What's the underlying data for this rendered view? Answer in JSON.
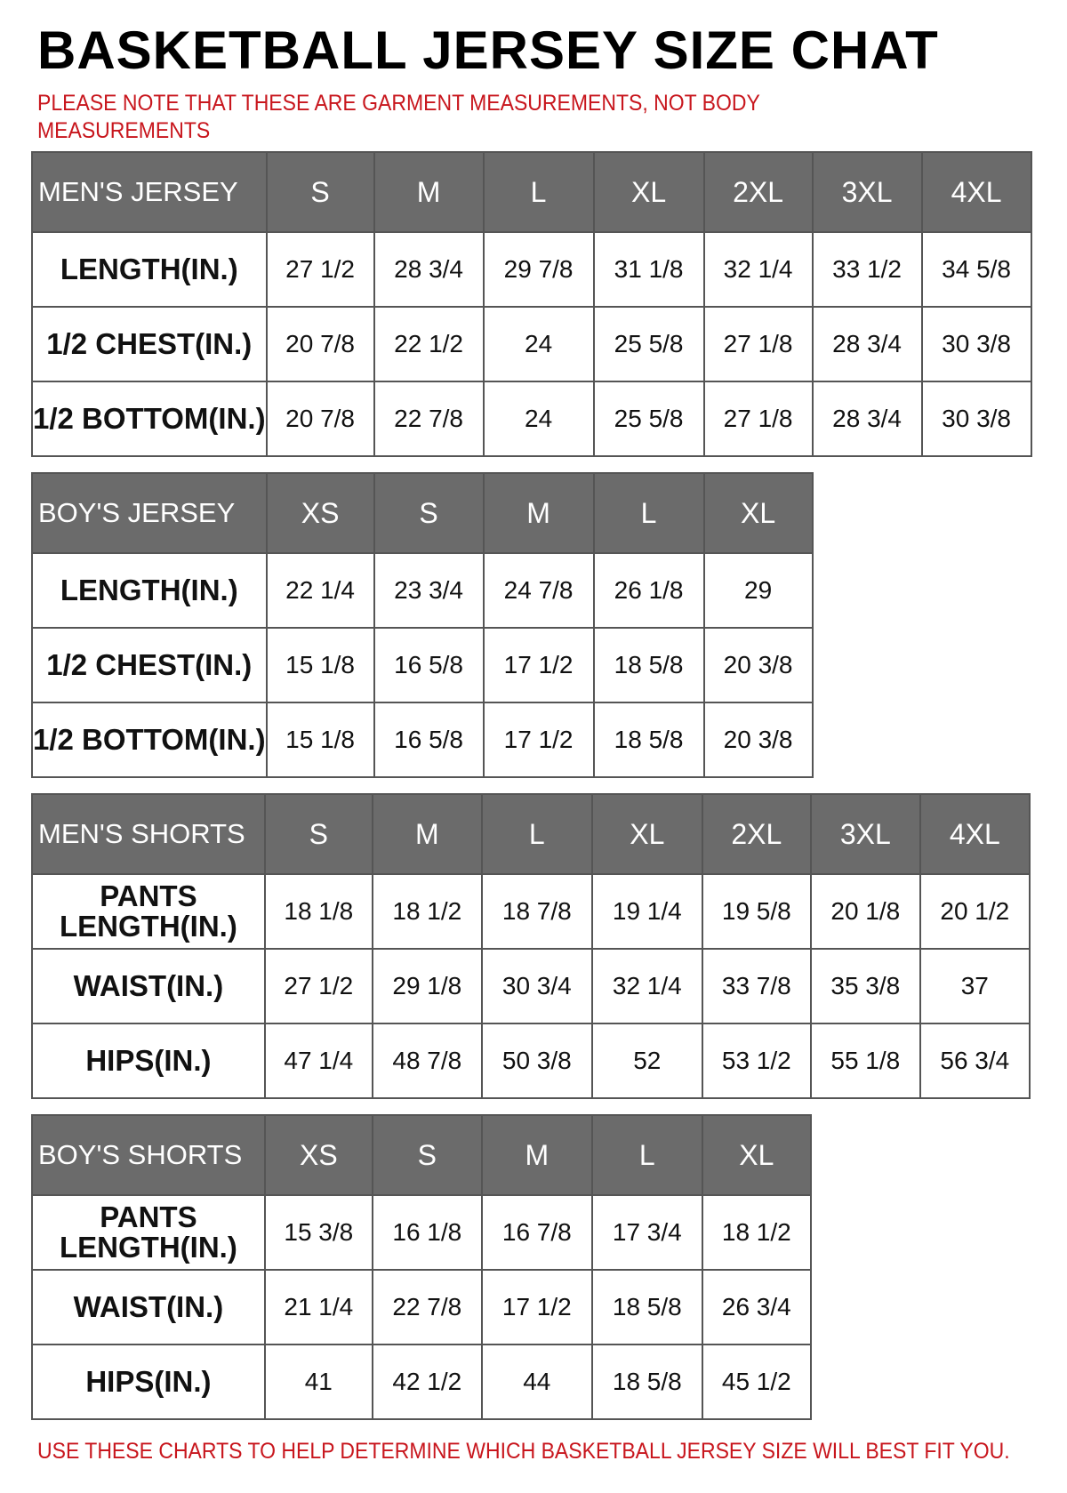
{
  "title": "BASKETBALL JERSEY SIZE CHAT",
  "note": "PLEASE NOTE THAT THESE ARE GARMENT MEASUREMENTS, NOT BODY MEASUREMENTS",
  "footer": "USE THESE CHARTS TO HELP DETERMINE WHICH BASKETBALL JERSEY SIZE WILL BEST FIT YOU.",
  "colors": {
    "header_bg": "#6b6b6b",
    "note_red": "#c8161d"
  },
  "tables": [
    {
      "name": "MEN'S JERSEY",
      "sizes": [
        "S",
        "M",
        "L",
        "XL",
        "2XL",
        "3XL",
        "4XL"
      ],
      "rows": [
        {
          "label": "LENGTH(IN.)",
          "values": [
            "27 1/2",
            "28 3/4",
            "29 7/8",
            "31 1/8",
            "32 1/4",
            "33 1/2",
            "34 5/8"
          ]
        },
        {
          "label": "1/2 CHEST(IN.)",
          "values": [
            "20 7/8",
            "22 1/2",
            "24",
            "25 5/8",
            "27 1/8",
            "28 3/4",
            "30 3/8"
          ]
        },
        {
          "label": "1/2 BOTTOM(IN.)",
          "values": [
            "20 7/8",
            "22 7/8",
            "24",
            "25 5/8",
            "27 1/8",
            "28 3/4",
            "30 3/8"
          ]
        }
      ]
    },
    {
      "name": "BOY'S JERSEY",
      "sizes": [
        "XS",
        "S",
        "M",
        "L",
        "XL"
      ],
      "rows": [
        {
          "label": "LENGTH(IN.)",
          "values": [
            "22 1/4",
            "23 3/4",
            "24 7/8",
            "26 1/8",
            "29"
          ]
        },
        {
          "label": "1/2 CHEST(IN.)",
          "values": [
            "15 1/8",
            "16 5/8",
            "17 1/2",
            "18 5/8",
            "20 3/8"
          ]
        },
        {
          "label": "1/2 BOTTOM(IN.)",
          "values": [
            "15 1/8",
            "16 5/8",
            "17 1/2",
            "18 5/8",
            "20 3/8"
          ]
        }
      ]
    },
    {
      "name": "MEN'S SHORTS",
      "sizes": [
        "S",
        "M",
        "L",
        "XL",
        "2XL",
        "3XL",
        "4XL"
      ],
      "rows": [
        {
          "label": "PANTS LENGTH(IN.)",
          "values": [
            "18 1/8",
            "18 1/2",
            "18 7/8",
            "19 1/4",
            "19 5/8",
            "20 1/8",
            "20 1/2"
          ]
        },
        {
          "label": "WAIST(IN.)",
          "values": [
            "27 1/2",
            "29 1/8",
            "30 3/4",
            "32 1/4",
            "33 7/8",
            "35 3/8",
            "37"
          ]
        },
        {
          "label": "HIPS(IN.)",
          "values": [
            "47 1/4",
            "48 7/8",
            "50 3/8",
            "52",
            "53 1/2",
            "55 1/8",
            "56 3/4"
          ]
        }
      ]
    },
    {
      "name": "BOY'S SHORTS",
      "sizes": [
        "XS",
        "S",
        "M",
        "L",
        "XL"
      ],
      "rows": [
        {
          "label": "PANTS LENGTH(IN.)",
          "values": [
            "15 3/8",
            "16 1/8",
            "16 7/8",
            "17 3/4",
            "18 1/2"
          ]
        },
        {
          "label": "WAIST(IN.)",
          "values": [
            "21 1/4",
            "22 7/8",
            "17 1/2",
            "18 5/8",
            "26 3/4"
          ]
        },
        {
          "label": "HIPS(IN.)",
          "values": [
            "41",
            "42 1/2",
            "44",
            "18 5/8",
            "45 1/2"
          ]
        }
      ]
    }
  ]
}
